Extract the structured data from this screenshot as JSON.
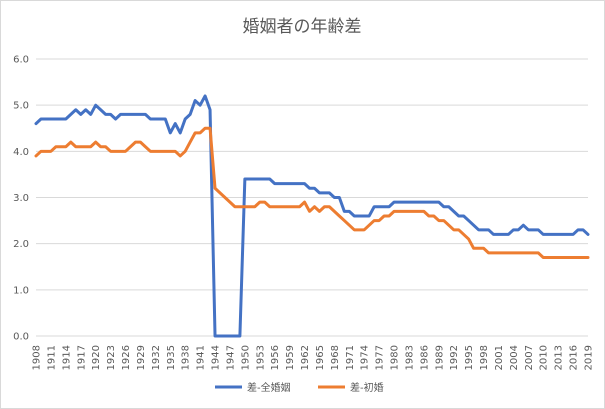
{
  "chart_data": {
    "type": "line",
    "title": "婚姻者の年齢差",
    "xlabel": "",
    "ylabel": "",
    "ylim": [
      0,
      6
    ],
    "yticks": [
      "0.0",
      "1.0",
      "2.0",
      "3.0",
      "4.0",
      "5.0",
      "6.0"
    ],
    "x_tick_labels": [
      "1908",
      "1911",
      "1914",
      "1917",
      "1920",
      "1923",
      "1926",
      "1929",
      "1932",
      "1935",
      "1938",
      "1941",
      "1944",
      "1947",
      "1950",
      "1953",
      "1956",
      "1959",
      "1962",
      "1965",
      "1968",
      "1971",
      "1974",
      "1977",
      "1980",
      "1983",
      "1986",
      "1989",
      "1992",
      "1995",
      "1998",
      "2001",
      "2004",
      "2007",
      "2010",
      "2013",
      "2016",
      "2019"
    ],
    "x": [
      1908,
      1909,
      1910,
      1911,
      1912,
      1913,
      1914,
      1915,
      1916,
      1917,
      1918,
      1919,
      1920,
      1921,
      1922,
      1923,
      1924,
      1925,
      1926,
      1927,
      1928,
      1929,
      1930,
      1931,
      1932,
      1933,
      1934,
      1935,
      1936,
      1937,
      1938,
      1939,
      1940,
      1941,
      1942,
      1943,
      1944,
      1945,
      1946,
      1947,
      1948,
      1949,
      1950,
      1951,
      1952,
      1953,
      1954,
      1955,
      1956,
      1957,
      1958,
      1959,
      1960,
      1961,
      1962,
      1963,
      1964,
      1965,
      1966,
      1967,
      1968,
      1969,
      1970,
      1971,
      1972,
      1973,
      1974,
      1975,
      1976,
      1977,
      1978,
      1979,
      1980,
      1981,
      1982,
      1983,
      1984,
      1985,
      1986,
      1987,
      1988,
      1989,
      1990,
      1991,
      1992,
      1993,
      1994,
      1995,
      1996,
      1997,
      1998,
      1999,
      2000,
      2001,
      2002,
      2003,
      2004,
      2005,
      2006,
      2007,
      2008,
      2009,
      2010,
      2011,
      2012,
      2013,
      2014,
      2015,
      2016,
      2017,
      2018,
      2019
    ],
    "grid": true,
    "legend_position": "bottom",
    "series": [
      {
        "name": "差-全婚姻",
        "color": "#4472c4",
        "values": [
          4.6,
          4.7,
          4.7,
          4.7,
          4.7,
          4.7,
          4.7,
          4.8,
          4.9,
          4.8,
          4.9,
          4.8,
          5.0,
          4.9,
          4.8,
          4.8,
          4.7,
          4.8,
          4.8,
          4.8,
          4.8,
          4.8,
          4.8,
          4.7,
          4.7,
          4.7,
          4.7,
          4.4,
          4.6,
          4.4,
          4.7,
          4.8,
          5.1,
          5.0,
          5.2,
          4.9,
          0.0,
          0.0,
          0.0,
          0.0,
          0.0,
          0.0,
          3.4,
          3.4,
          3.4,
          3.4,
          3.4,
          3.4,
          3.3,
          3.3,
          3.3,
          3.3,
          3.3,
          3.3,
          3.3,
          3.2,
          3.2,
          3.1,
          3.1,
          3.1,
          3.0,
          3.0,
          2.7,
          2.7,
          2.6,
          2.6,
          2.6,
          2.6,
          2.8,
          2.8,
          2.8,
          2.8,
          2.9,
          2.9,
          2.9,
          2.9,
          2.9,
          2.9,
          2.9,
          2.9,
          2.9,
          2.9,
          2.8,
          2.8,
          2.7,
          2.6,
          2.6,
          2.5,
          2.4,
          2.3,
          2.3,
          2.3,
          2.2,
          2.2,
          2.2,
          2.2,
          2.3,
          2.3,
          2.4,
          2.3,
          2.3,
          2.3,
          2.2,
          2.2,
          2.2,
          2.2,
          2.2,
          2.2,
          2.2,
          2.3,
          2.3,
          2.2
        ]
      },
      {
        "name": "差-初婚",
        "color": "#ed7d31",
        "values": [
          3.9,
          4.0,
          4.0,
          4.0,
          4.1,
          4.1,
          4.1,
          4.2,
          4.1,
          4.1,
          4.1,
          4.1,
          4.2,
          4.1,
          4.1,
          4.0,
          4.0,
          4.0,
          4.0,
          4.1,
          4.2,
          4.2,
          4.1,
          4.0,
          4.0,
          4.0,
          4.0,
          4.0,
          4.0,
          3.9,
          4.0,
          4.2,
          4.4,
          4.4,
          4.5,
          4.5,
          3.2,
          3.1,
          3.0,
          2.9,
          2.8,
          2.8,
          2.8,
          2.8,
          2.8,
          2.9,
          2.9,
          2.8,
          2.8,
          2.8,
          2.8,
          2.8,
          2.8,
          2.8,
          2.9,
          2.7,
          2.8,
          2.7,
          2.8,
          2.8,
          2.7,
          2.6,
          2.5,
          2.4,
          2.3,
          2.3,
          2.3,
          2.4,
          2.5,
          2.5,
          2.6,
          2.6,
          2.7,
          2.7,
          2.7,
          2.7,
          2.7,
          2.7,
          2.7,
          2.6,
          2.6,
          2.5,
          2.5,
          2.4,
          2.3,
          2.3,
          2.2,
          2.1,
          1.9,
          1.9,
          1.9,
          1.8,
          1.8,
          1.8,
          1.8,
          1.8,
          1.8,
          1.8,
          1.8,
          1.8,
          1.8,
          1.8,
          1.7,
          1.7,
          1.7,
          1.7,
          1.7,
          1.7,
          1.7,
          1.7,
          1.7,
          1.7
        ]
      }
    ]
  }
}
